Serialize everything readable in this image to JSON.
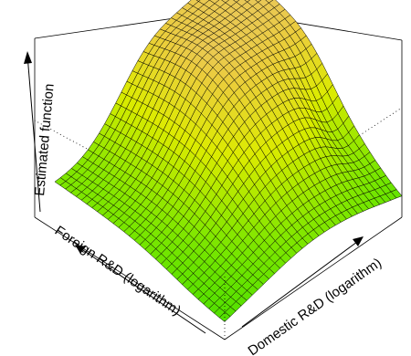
{
  "chart_data": {
    "type": "surface",
    "xlabel": "Domestic R&D (logarithm)",
    "ylabel": "Foreign R&D (logarithm)",
    "zlabel": "Estimated function",
    "xlim": [
      0,
      1
    ],
    "ylim": [
      0,
      1
    ],
    "zlim": [
      0,
      1
    ],
    "grid_size": 32,
    "colormap": "terrain (green low, yellow/tan high)",
    "grid": false,
    "legend": "none"
  }
}
